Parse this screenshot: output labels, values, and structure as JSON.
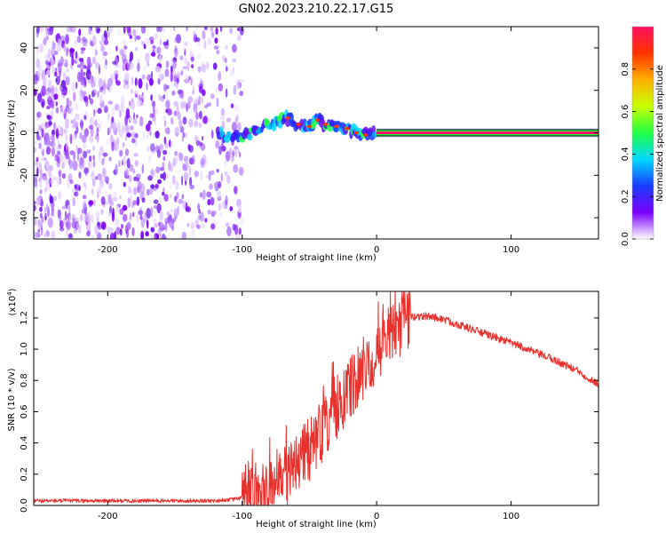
{
  "title": "GN02.2023.210.22.17.G15",
  "chart_data": [
    {
      "type": "heatmap",
      "xlabel": "Height of straight line (km)",
      "ylabel": "Frequency (Hz)",
      "xlim": [
        -255,
        165
      ],
      "ylim": [
        -50,
        50
      ],
      "x_ticks": [
        -200,
        -100,
        0,
        100
      ],
      "y_ticks": [
        -40,
        -20,
        0,
        20,
        40
      ],
      "signal_track": [
        {
          "x": -118,
          "y": 0
        },
        {
          "x": -110,
          "y": -2
        },
        {
          "x": -100,
          "y": -1
        },
        {
          "x": -90,
          "y": 0
        },
        {
          "x": -82,
          "y": 3
        },
        {
          "x": -74,
          "y": 5
        },
        {
          "x": -66,
          "y": 7
        },
        {
          "x": -58,
          "y": 4
        },
        {
          "x": -50,
          "y": 3
        },
        {
          "x": -44,
          "y": 6
        },
        {
          "x": -38,
          "y": 4
        },
        {
          "x": -30,
          "y": 3
        },
        {
          "x": -22,
          "y": 2
        },
        {
          "x": -15,
          "y": 0
        },
        {
          "x": -8,
          "y": -1
        },
        {
          "x": 0,
          "y": 0
        },
        {
          "x": 165,
          "y": 0
        }
      ],
      "colorbar": {
        "label": "Normalized spectral amplitude",
        "range": [
          0,
          1
        ],
        "ticks": [
          0.0,
          0.2,
          0.4,
          0.6,
          0.8
        ],
        "tick_labels": [
          "0.0",
          "0.2",
          "0.4",
          "0.6",
          "0.8"
        ],
        "colors": [
          "#ffffff",
          "#7b00ff",
          "#1a3cff",
          "#00d8ff",
          "#22ff44",
          "#c8ff00",
          "#ffb000",
          "#ff3300",
          "#ff1060"
        ]
      }
    },
    {
      "type": "line",
      "xlabel": "Height of straight line (km)",
      "ylabel": "SNR (10 * v/v)",
      "y_multiplier_label": "(x10",
      "y_multiplier_exp": "4",
      "y_multiplier_close": ")",
      "xlim": [
        -255,
        165
      ],
      "ylim": [
        0,
        1.37
      ],
      "x_ticks": [
        -200,
        -100,
        0,
        100
      ],
      "y_ticks": [
        0.0,
        0.2,
        0.4,
        0.6,
        0.8,
        1.0,
        1.2
      ],
      "y_tick_labels": [
        "0.0",
        "0.2",
        "0.4",
        "0.6",
        "0.8",
        "1.0",
        "1.2"
      ],
      "line_color": "#e8302c",
      "series": [
        {
          "x": [
            -255,
            -200,
            -150,
            -120,
            -105,
            -95,
            -85,
            -75,
            -65,
            -58,
            -52,
            -45,
            -40,
            -35,
            -30,
            -25,
            -20,
            -15,
            -10,
            -5,
            0,
            5,
            10,
            15,
            20,
            25,
            30,
            40,
            50,
            60,
            70,
            80,
            90,
            100,
            110,
            120,
            130,
            140,
            150,
            160,
            165
          ],
          "y": [
            0.03,
            0.03,
            0.03,
            0.03,
            0.04,
            0.06,
            0.1,
            0.14,
            0.22,
            0.3,
            0.34,
            0.4,
            0.48,
            0.55,
            0.62,
            0.68,
            0.74,
            0.8,
            0.86,
            0.92,
            0.98,
            1.03,
            1.09,
            1.13,
            1.17,
            1.2,
            1.21,
            1.21,
            1.19,
            1.16,
            1.13,
            1.1,
            1.07,
            1.04,
            1.01,
            0.97,
            0.94,
            0.9,
            0.86,
            0.8,
            0.78
          ]
        }
      ]
    }
  ]
}
